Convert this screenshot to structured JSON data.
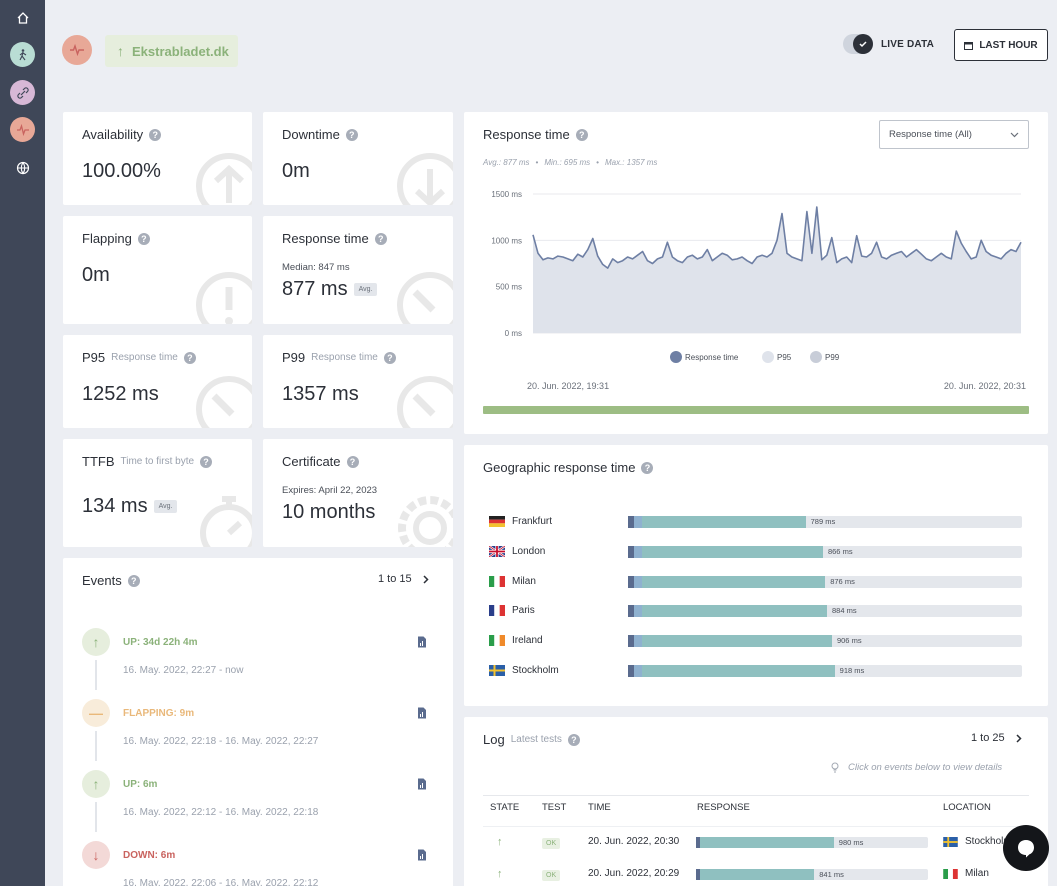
{
  "header": {
    "site_name": "Ekstrabladet.dk",
    "live_label": "LIVE DATA",
    "range_label": "LAST HOUR"
  },
  "sidebar": {
    "items": [
      "home-icon",
      "walking-person-icon",
      "link-icon",
      "heartbeat-icon",
      "globe-icon"
    ]
  },
  "stats": {
    "availability": {
      "label": "Availability",
      "value": "100.00%"
    },
    "downtime": {
      "label": "Downtime",
      "value": "0m"
    },
    "flapping": {
      "label": "Flapping",
      "value": "0m"
    },
    "response_time": {
      "label": "Response time",
      "median": "Median: 847 ms",
      "value": "877 ms",
      "badge": "Avg."
    },
    "p95": {
      "label": "P95",
      "sub": "Response time",
      "value": "1252 ms"
    },
    "p99": {
      "label": "P99",
      "sub": "Response time",
      "value": "1357 ms"
    },
    "ttfb": {
      "label": "TTFB",
      "sub": "Time to first byte",
      "value": "134 ms",
      "badge": "Avg."
    },
    "certificate": {
      "label": "Certificate",
      "expires": "Expires: April 22, 2023",
      "value": "10 months"
    }
  },
  "response_chart": {
    "title": "Response time",
    "select_value": "Response time (All)",
    "summary": {
      "avg": "Avg.: 877 ms",
      "min": "Min.: 695 ms",
      "max": "Max.: 1357 ms"
    },
    "start_label": "20. Jun. 2022, 19:31",
    "end_label": "20. Jun. 2022, 20:31"
  },
  "chart_data": {
    "type": "area",
    "title": "Response time",
    "xlabel": "",
    "ylabel": "",
    "ylim": [
      0,
      1500
    ],
    "yticks": [
      0,
      500,
      1000,
      1500
    ],
    "ytick_labels": [
      "0 ms",
      "500 ms",
      "1000 ms",
      "1500 ms"
    ],
    "legend": [
      "Response time",
      "P95",
      "P99"
    ],
    "legend_position": "bottom",
    "series": [
      {
        "name": "Response time",
        "values": [
          1060,
          860,
          790,
          810,
          800,
          830,
          820,
          800,
          780,
          850,
          820,
          900,
          1020,
          830,
          740,
          700,
          800,
          760,
          780,
          820,
          800,
          840,
          880,
          780,
          750,
          800,
          820,
          980,
          820,
          780,
          760,
          820,
          840,
          800,
          820,
          900,
          780,
          820,
          860,
          840,
          790,
          800,
          820,
          780,
          750,
          820,
          840,
          820,
          860,
          1000,
          1290,
          860,
          820,
          800,
          780,
          1310,
          860,
          1360,
          790,
          840,
          1030,
          760,
          800,
          820,
          760,
          1050,
          830,
          820,
          860,
          980,
          820,
          800,
          840,
          860,
          880,
          820,
          860,
          900,
          850,
          800,
          780,
          820,
          860,
          820,
          800,
          1100,
          970,
          880,
          800,
          820,
          1000,
          880,
          840,
          820,
          800,
          860,
          900,
          880,
          980
        ]
      }
    ]
  },
  "geo": {
    "title": "Geographic response time",
    "rows": [
      {
        "city": "Frankfurt",
        "value": "789 ms",
        "flag": "de",
        "ms": 789
      },
      {
        "city": "London",
        "value": "866 ms",
        "flag": "gb",
        "ms": 866
      },
      {
        "city": "Milan",
        "value": "876 ms",
        "flag": "it",
        "ms": 876
      },
      {
        "city": "Paris",
        "value": "884 ms",
        "flag": "fr",
        "ms": 884
      },
      {
        "city": "Ireland",
        "value": "906 ms",
        "flag": "ie",
        "ms": 906
      },
      {
        "city": "Stockholm",
        "value": "918 ms",
        "flag": "se",
        "ms": 918
      }
    ]
  },
  "events": {
    "title": "Events",
    "pager": "1 to 15",
    "items": [
      {
        "status": "up",
        "title": "UP: 34d 22h 4m",
        "date": "16. May. 2022, 22:27 - now"
      },
      {
        "status": "flapping",
        "title": "FLAPPING: 9m",
        "date": "16. May. 2022, 22:18 - 16. May. 2022, 22:27"
      },
      {
        "status": "up",
        "title": "UP: 6m",
        "date": "16. May. 2022, 22:12 - 16. May. 2022, 22:18"
      },
      {
        "status": "down",
        "title": "DOWN: 6m",
        "date": "16. May. 2022, 22:06 - 16. May. 2022, 22:12"
      }
    ]
  },
  "log": {
    "title": "Log",
    "sub": "Latest tests",
    "pager": "1 to 25",
    "hint": "Click on events below to view details",
    "headers": {
      "state": "STATE",
      "test": "TEST",
      "time": "TIME",
      "response": "RESPONSE",
      "location": "LOCATION"
    },
    "rows": [
      {
        "test": "OK",
        "time": "20. Jun. 2022, 20:30",
        "response": "980 ms",
        "ms": 980,
        "location": "Stockholm",
        "flag": "se"
      },
      {
        "test": "OK",
        "time": "20. Jun. 2022, 20:29",
        "response": "841 ms",
        "ms": 841,
        "location": "Milan",
        "flag": "it"
      }
    ]
  },
  "colors": {
    "sidebar": "#3f4758",
    "up": "#8bb27a",
    "flapping": "#e9b87a",
    "down": "#c9635f",
    "chart_line": "#6e7fa4",
    "chart_fill": "#dfe3eb",
    "geo_bar": "#8fc0c0",
    "progress": "#9dbd84"
  }
}
